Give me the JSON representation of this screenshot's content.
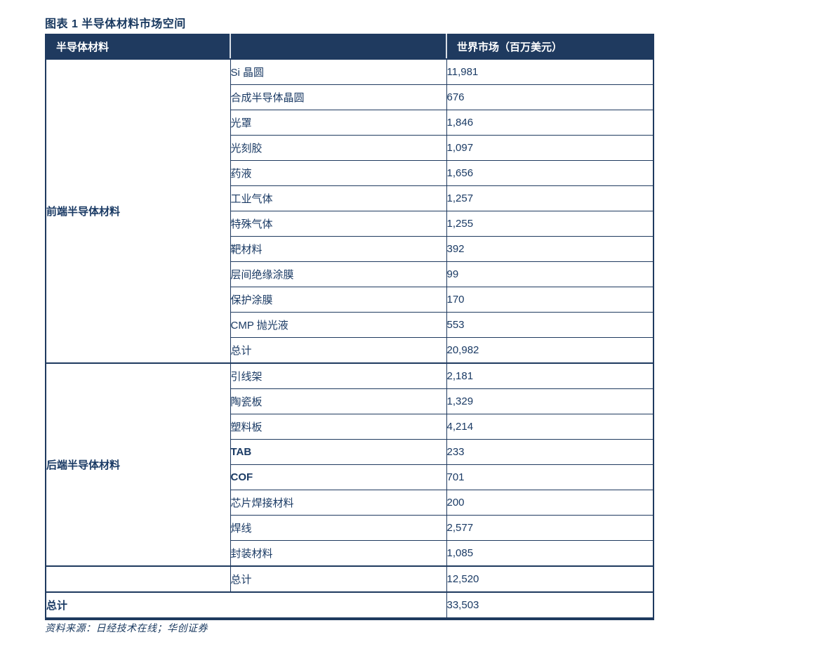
{
  "title": "图表 1 半导体材料市场空间",
  "colors": {
    "header_bg": "#1F3A5F",
    "title_text": "#17375E",
    "cell_text": "#1A3A64",
    "grid_border": "#1F3A5F",
    "header_divider": "#D9DEE6",
    "page_bg": "#FFFFFF"
  },
  "table": {
    "header": {
      "material": "半导体材料",
      "category": "",
      "world_market": "世界市场（百万美元）"
    },
    "sections": [
      {
        "group": "前端半导体材料",
        "rows": [
          {
            "label": "Si 晶圆",
            "value": "11,981"
          },
          {
            "label": "合成半导体晶圆",
            "value": "676"
          },
          {
            "label": "光罩",
            "value": "1,846"
          },
          {
            "label": "光刻胶",
            "value": "1,097"
          },
          {
            "label": "药液",
            "value": "1,656"
          },
          {
            "label": "工业气体",
            "value": "1,257"
          },
          {
            "label": "特殊气体",
            "value": "1,255"
          },
          {
            "label": "靶材料",
            "value": "392"
          },
          {
            "label": "层间绝缘涂膜",
            "value": "99"
          },
          {
            "label": "保护涂膜",
            "value": "170"
          },
          {
            "label": "CMP 抛光液",
            "value": "553"
          },
          {
            "label": "总计",
            "value": "20,982"
          }
        ]
      },
      {
        "group": "后端半导体材料",
        "rows": [
          {
            "label": "引线架",
            "value": "2,181"
          },
          {
            "label": "陶瓷板",
            "value": "1,329"
          },
          {
            "label": "塑料板",
            "value": "4,214"
          },
          {
            "label": "TAB",
            "value": "233"
          },
          {
            "label": "COF",
            "value": "701"
          },
          {
            "label": "芯片焊接材料",
            "value": "200"
          },
          {
            "label": "焊线",
            "value": "2,577"
          },
          {
            "label": "封装材料",
            "value": "1,085"
          }
        ]
      }
    ],
    "backend_subtotal": {
      "label": "总计",
      "value": "12,520"
    },
    "grand_total": {
      "label": "总计",
      "value": "33,503"
    }
  },
  "footer": {
    "source": "资料来源：日经技术在线；华创证券"
  }
}
